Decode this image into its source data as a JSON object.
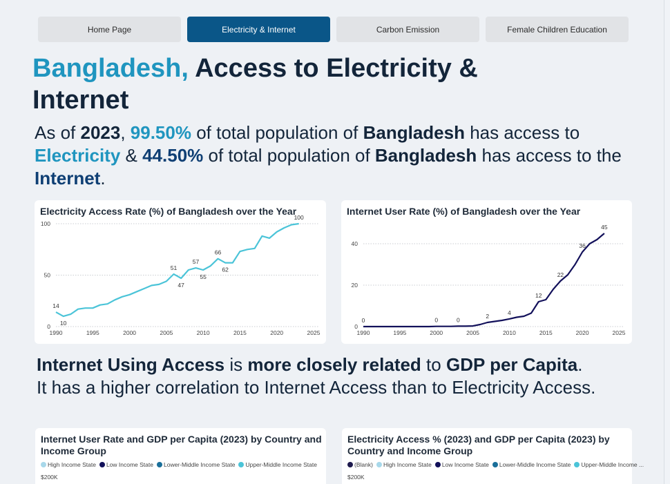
{
  "nav": {
    "tabs": [
      {
        "label": "Home Page",
        "active": false
      },
      {
        "label": "Electricity & Internet",
        "active": true
      },
      {
        "label": "Carbon Emission",
        "active": false
      },
      {
        "label": "Female Children Education",
        "active": false
      }
    ]
  },
  "header": {
    "title_country": "Bangladesh,",
    "title_rest": "Access to Electricity & Internet"
  },
  "summary": {
    "p1": "As of ",
    "year": "2023",
    "p2": ", ",
    "electricity_pct": "99.50%",
    "p3": " of total population of ",
    "country1": "Bangladesh",
    "p4": " has access to ",
    "electricity_word": "Electricity",
    "p5": " & ",
    "internet_pct": "44.50%",
    "p6": " of total population of ",
    "country2": "Bangladesh",
    "p7": " has access to the ",
    "internet_word": "Internet",
    "p8": "."
  },
  "statement": {
    "b1": "Internet Using Access",
    "t1": " is ",
    "b2": "more closely related",
    "t2": " to ",
    "b3": "GDP per Capita",
    "t3": ".",
    "t4": "It has a higher correlation to Internet Access than to Electricity Access."
  },
  "colors": {
    "electricity_line": "#4bc4d8",
    "internet_line": "#12105a",
    "accent_light": "#1f95bf",
    "accent_dark": "#0f3f74",
    "nav_active": "#0a5688"
  },
  "chart_data": [
    {
      "type": "line",
      "title": "Electricity Access Rate (%) of Bangladesh over the Year",
      "xlim": [
        1990,
        2025
      ],
      "ylim": [
        0,
        100
      ],
      "x_ticks": [
        1990,
        1995,
        2000,
        2005,
        2010,
        2015,
        2020,
        2025
      ],
      "y_ticks": [
        0,
        50,
        100
      ],
      "grid": true,
      "series": [
        {
          "x": [
            1990,
            1991,
            1992,
            1993,
            1994,
            1995,
            1996,
            1997,
            1998,
            1999,
            2000,
            2001,
            2002,
            2003,
            2004,
            2005,
            2006,
            2007,
            2008,
            2009,
            2010,
            2011,
            2012,
            2013,
            2014,
            2015,
            2016,
            2017,
            2018,
            2019,
            2020,
            2021,
            2022,
            2023
          ],
          "values": [
            14,
            10,
            12,
            17,
            18,
            18,
            21,
            22,
            26,
            29,
            31,
            34,
            37,
            40,
            41,
            44,
            51,
            47,
            55,
            57,
            55,
            59,
            66,
            62,
            62,
            73,
            75,
            76,
            88,
            86,
            92,
            96,
            99,
            100
          ]
        }
      ],
      "data_labels": [
        {
          "x": 1990,
          "label": "14"
        },
        {
          "x": 1991,
          "label": "10"
        },
        {
          "x": 2006,
          "label": "51"
        },
        {
          "x": 2007,
          "label": "47"
        },
        {
          "x": 2009,
          "label": "57"
        },
        {
          "x": 2010,
          "label": "55"
        },
        {
          "x": 2012,
          "label": "66"
        },
        {
          "x": 2013,
          "label": "62"
        },
        {
          "x": 2023,
          "label": "100"
        }
      ]
    },
    {
      "type": "line",
      "title": "Internet User Rate (%) of Bangladesh over the Year",
      "xlim": [
        1990,
        2025
      ],
      "ylim": [
        0,
        50
      ],
      "x_ticks": [
        1990,
        1995,
        2000,
        2005,
        2010,
        2015,
        2020,
        2025
      ],
      "y_ticks": [
        0,
        20,
        40
      ],
      "grid": true,
      "series": [
        {
          "x": [
            1990,
            1991,
            1992,
            1993,
            1994,
            1995,
            1996,
            1997,
            1998,
            1999,
            2000,
            2001,
            2002,
            2003,
            2004,
            2005,
            2006,
            2007,
            2008,
            2009,
            2010,
            2011,
            2012,
            2013,
            2014,
            2015,
            2016,
            2017,
            2018,
            2019,
            2020,
            2021,
            2022,
            2023
          ],
          "values": [
            0,
            0,
            0,
            0,
            0,
            0,
            0,
            0,
            0,
            0,
            0.1,
            0.1,
            0.1,
            0.2,
            0.2,
            0.3,
            1,
            2,
            2.5,
            3,
            3.7,
            4.5,
            5,
            6.5,
            12,
            13,
            18,
            22,
            25,
            30,
            36,
            40,
            42,
            45
          ]
        }
      ],
      "data_labels": [
        {
          "x": 1990,
          "label": "0"
        },
        {
          "x": 2000,
          "label": "0"
        },
        {
          "x": 2003,
          "label": "0"
        },
        {
          "x": 2007,
          "label": "2"
        },
        {
          "x": 2010,
          "label": "4"
        },
        {
          "x": 2014,
          "label": "12"
        },
        {
          "x": 2017,
          "label": "22"
        },
        {
          "x": 2020,
          "label": "36"
        },
        {
          "x": 2023,
          "label": "45"
        }
      ]
    }
  ],
  "scatter_cards": [
    {
      "title": "Internet User Rate and GDP per Capita (2023) by Country and Income Group",
      "legend": [
        {
          "label": "High Income State",
          "color": "#a8d8ea"
        },
        {
          "label": "Low Income State",
          "color": "#12105a"
        },
        {
          "label": "Lower-Middle Income State",
          "color": "#1a6f9a"
        },
        {
          "label": "Upper-Middle Income State",
          "color": "#4bc4d8"
        }
      ],
      "y_top_tick": "$200K"
    },
    {
      "title": "Electricity Access % (2023) and GDP per Capita (2023) by Country and Income Group",
      "legend": [
        {
          "label": "(Blank)",
          "color": "#1e1a4d"
        },
        {
          "label": "High Income State",
          "color": "#a8d8ea"
        },
        {
          "label": "Low Income State",
          "color": "#12105a"
        },
        {
          "label": "Lower-Middle Income State",
          "color": "#1a6f9a"
        },
        {
          "label": "Upper-Middle Income ...",
          "color": "#4bc4d8"
        }
      ],
      "y_top_tick": "$200K"
    }
  ]
}
